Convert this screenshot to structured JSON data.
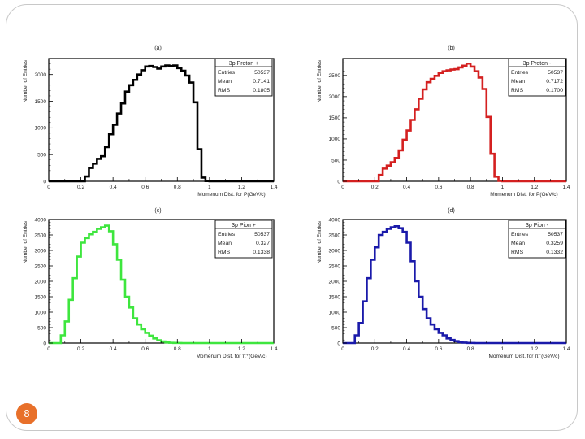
{
  "slide": {
    "page_number": "8"
  },
  "chart_data": [
    {
      "type": "bar",
      "panel_label": "(a)",
      "color": "#000000",
      "stats_title": "3p Proton +",
      "stats": [
        [
          "Entries",
          "50537"
        ],
        [
          "Mean",
          "0.7141"
        ],
        [
          "RMS",
          "0.1805"
        ]
      ],
      "xlabel": "Momenum Dist. for P(GeV/c)",
      "ylabel": "Number of Entries",
      "xlim": [
        0,
        1.4
      ],
      "ylim": [
        0,
        2300
      ],
      "xticks": [
        "0",
        "0.2",
        "0.4",
        "0.6",
        "0.8",
        "1",
        "1.2",
        "1.4"
      ],
      "yticks": [
        0,
        500,
        1000,
        1500,
        2000
      ],
      "bin_width": 0.025,
      "x_start": 0.0,
      "values": [
        0,
        0,
        0,
        0,
        0,
        0,
        0,
        0,
        0,
        90,
        250,
        330,
        420,
        470,
        640,
        880,
        1060,
        1270,
        1460,
        1680,
        1800,
        1900,
        2000,
        2080,
        2150,
        2160,
        2140,
        2110,
        2150,
        2170,
        2160,
        2170,
        2120,
        2070,
        1980,
        1850,
        1480,
        600,
        70,
        5,
        0,
        0,
        0,
        0,
        0,
        0,
        0,
        0,
        0,
        0,
        0,
        0,
        0,
        0,
        0,
        0
      ]
    },
    {
      "type": "bar",
      "panel_label": "(b)",
      "color": "#d42020",
      "stats_title": "3p Proton -",
      "stats": [
        [
          "Entries",
          "50537"
        ],
        [
          "Mean",
          "0.7172"
        ],
        [
          "RMS",
          "0.1700"
        ]
      ],
      "xlabel": "Momenum Dist. for P(GeV/c)",
      "ylabel": "Number of Entries",
      "xlim": [
        0,
        1.4
      ],
      "ylim": [
        0,
        2900
      ],
      "xticks": [
        "0",
        "0.2",
        "0.4",
        "0.6",
        "0.8",
        "1",
        "1.2",
        "1.4"
      ],
      "yticks": [
        0,
        500,
        1000,
        1500,
        2000,
        2500
      ],
      "bin_width": 0.025,
      "x_start": 0.0,
      "values": [
        0,
        0,
        0,
        0,
        0,
        0,
        0,
        0,
        0,
        150,
        300,
        370,
        450,
        550,
        730,
        980,
        1200,
        1450,
        1700,
        1950,
        2170,
        2340,
        2420,
        2490,
        2560,
        2600,
        2620,
        2640,
        2650,
        2690,
        2730,
        2780,
        2710,
        2600,
        2450,
        2180,
        1520,
        650,
        110,
        10,
        0,
        0,
        0,
        0,
        0,
        0,
        0,
        0,
        0,
        0,
        0,
        0,
        0,
        0,
        0,
        0
      ]
    },
    {
      "type": "bar",
      "panel_label": "(c)",
      "color": "#3ee63e",
      "stats_title": "3p Pion +",
      "stats": [
        [
          "Entries",
          "50537"
        ],
        [
          "Mean",
          "0.327"
        ],
        [
          "RMS",
          "0.1338"
        ]
      ],
      "xlabel": "Momenum Dist. for π⁺(GeV/c)",
      "ylabel": "Number of Entries",
      "xlim": [
        0,
        1.4
      ],
      "ylim": [
        0,
        4000
      ],
      "xticks": [
        "0",
        "0.2",
        "0.4",
        "0.6",
        "0.8",
        "1",
        "1.2",
        "1.4"
      ],
      "yticks": [
        0,
        500,
        1000,
        1500,
        2000,
        2500,
        3000,
        3500,
        4000
      ],
      "bin_width": 0.025,
      "x_start": 0.0,
      "values": [
        0,
        0,
        0,
        250,
        700,
        1400,
        2100,
        2800,
        3250,
        3400,
        3520,
        3600,
        3700,
        3750,
        3800,
        3620,
        3200,
        2700,
        2050,
        1500,
        1150,
        800,
        600,
        450,
        330,
        240,
        150,
        90,
        50,
        20,
        10,
        5,
        3,
        0,
        0,
        0,
        0,
        0,
        0,
        0,
        0,
        0,
        0,
        0,
        0,
        0,
        0,
        0,
        0,
        0,
        0,
        0,
        0,
        0,
        0,
        0
      ]
    },
    {
      "type": "bar",
      "panel_label": "(d)",
      "color": "#1a1aaa",
      "stats_title": "3p Pion -",
      "stats": [
        [
          "Entries",
          "50537"
        ],
        [
          "Mean",
          "0.3259"
        ],
        [
          "RMS",
          "0.1332"
        ]
      ],
      "xlabel": "Momenum Dist. for π⁻(GeV/c)",
      "ylabel": "Number of Entries",
      "xlim": [
        0,
        1.4
      ],
      "ylim": [
        0,
        4000
      ],
      "xticks": [
        "0",
        "0.2",
        "0.4",
        "0.6",
        "0.8",
        "1",
        "1.2",
        "1.4"
      ],
      "yticks": [
        0,
        500,
        1000,
        1500,
        2000,
        2500,
        3000,
        3500,
        4000
      ],
      "bin_width": 0.025,
      "x_start": 0.0,
      "values": [
        0,
        0,
        0,
        250,
        650,
        1350,
        2100,
        2700,
        3100,
        3500,
        3600,
        3700,
        3750,
        3780,
        3720,
        3600,
        3250,
        2650,
        2000,
        1500,
        1100,
        800,
        600,
        450,
        330,
        250,
        150,
        100,
        60,
        30,
        15,
        5,
        3,
        0,
        0,
        0,
        0,
        0,
        0,
        0,
        0,
        0,
        0,
        0,
        0,
        0,
        0,
        0,
        0,
        0,
        0,
        0,
        0,
        0,
        0,
        0
      ]
    }
  ]
}
